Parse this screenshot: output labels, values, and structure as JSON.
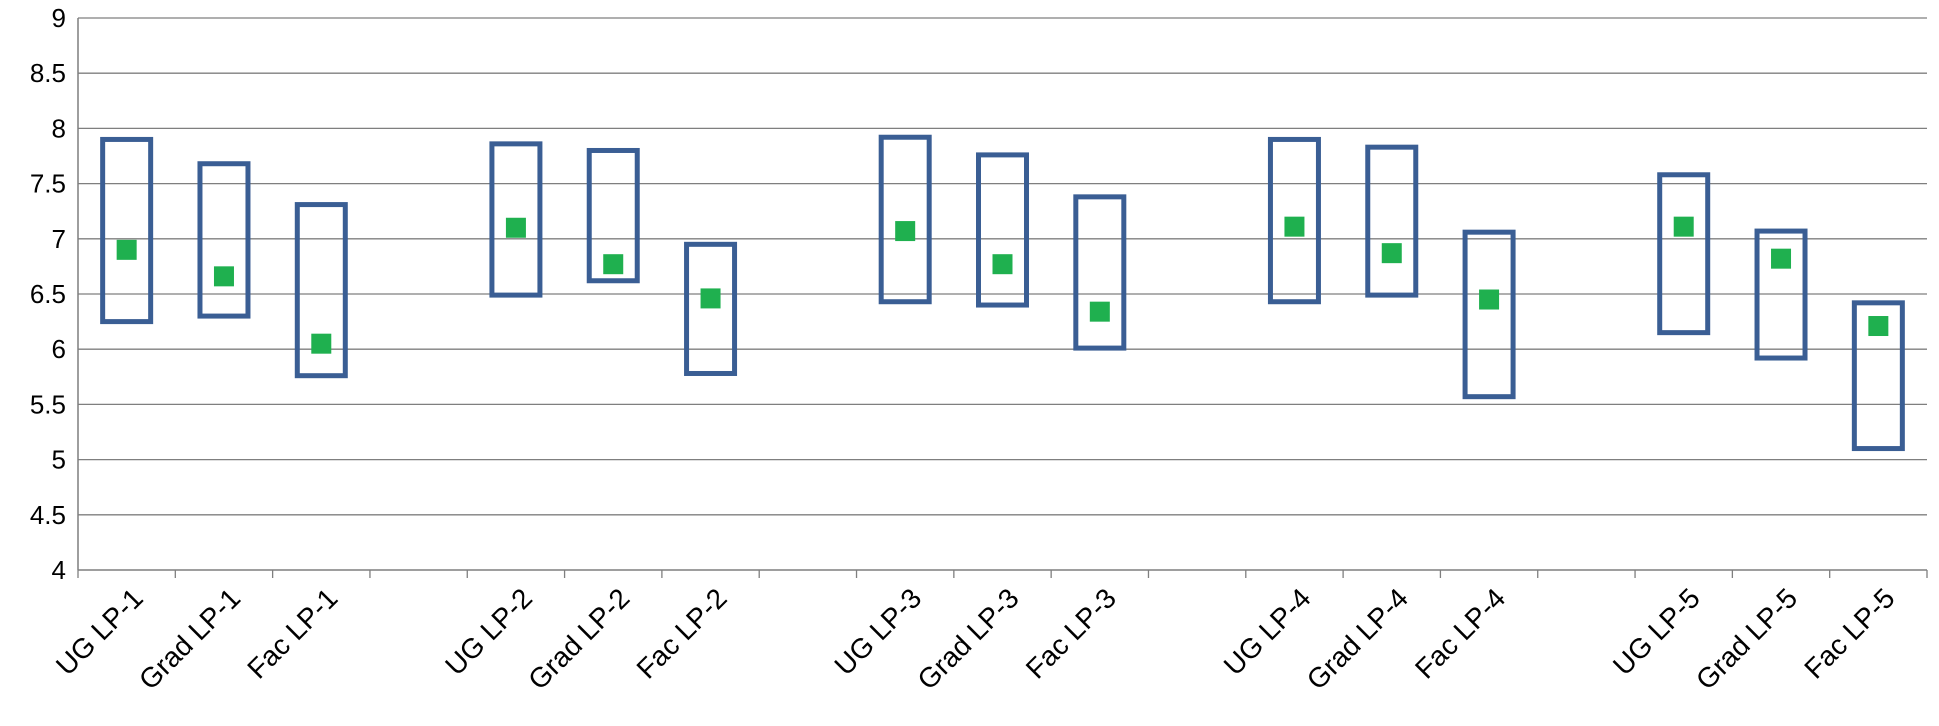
{
  "chart_data": {
    "type": "box",
    "categories": [
      "UG LP-1",
      "Grad LP-1",
      "Fac LP-1",
      "",
      "UG LP-2",
      "Grad LP-2",
      "Fac LP-2",
      "",
      "UG LP-3",
      "Grad LP-3",
      "Fac LP-3",
      "",
      "UG LP-4",
      "Grad LP-4",
      "Fac LP-4",
      "",
      "UG LP-5",
      "Grad LP-5",
      "Fac LP-5"
    ],
    "series": [
      {
        "values": [
          {
            "low": 6.25,
            "high": 7.9
          },
          {
            "low": 6.3,
            "high": 7.68
          },
          {
            "low": 5.76,
            "high": 7.31
          },
          null,
          {
            "low": 6.49,
            "high": 7.86
          },
          {
            "low": 6.62,
            "high": 7.8
          },
          {
            "low": 5.78,
            "high": 6.95
          },
          null,
          {
            "low": 6.43,
            "high": 7.92
          },
          {
            "low": 6.4,
            "high": 7.76
          },
          {
            "low": 6.01,
            "high": 7.38
          },
          null,
          {
            "low": 6.43,
            "high": 7.9
          },
          {
            "low": 6.49,
            "high": 7.83
          },
          {
            "low": 5.57,
            "high": 7.06
          },
          null,
          {
            "low": 6.15,
            "high": 7.58
          },
          {
            "low": 5.92,
            "high": 7.07
          },
          {
            "low": 5.1,
            "high": 6.42
          }
        ]
      },
      {
        "values": [
          6.9,
          6.66,
          6.05,
          null,
          7.1,
          6.77,
          6.46,
          null,
          7.07,
          6.77,
          6.34,
          null,
          7.11,
          6.87,
          6.45,
          null,
          7.11,
          6.82,
          6.21
        ]
      }
    ],
    "ylim": [
      4,
      9
    ],
    "yticks": [
      "4",
      "4.5",
      "5",
      "5.5",
      "6",
      "6.5",
      "7",
      "7.5",
      "8",
      "8.5",
      "9"
    ],
    "grid": true,
    "colors": {
      "box": "#3a5e94",
      "marker": "#1fb04f",
      "grid": "#7f7f7f"
    }
  }
}
